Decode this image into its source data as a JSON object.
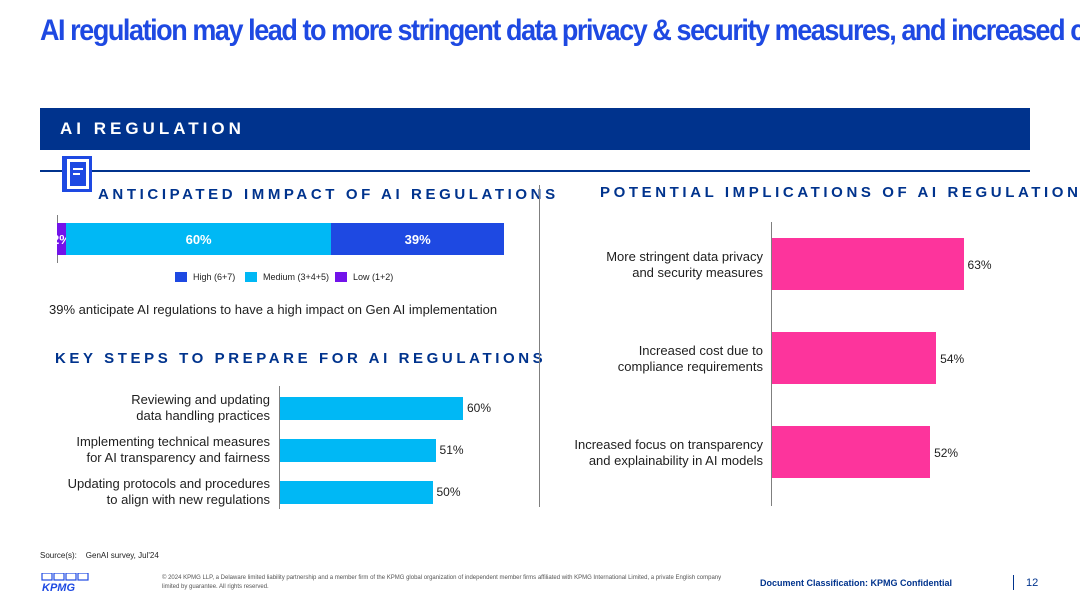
{
  "title": "AI regulation may lead to more stringent data privacy & security measures, and increased cost",
  "banner": "AI REGULATION",
  "colors": {
    "accent": "#1e49e2",
    "navy": "#00338d",
    "high": "#1e49e2",
    "medium": "#00b8f5",
    "low": "#7213ea",
    "pink": "#fd349c"
  },
  "chart_data": [
    {
      "type": "bar",
      "orientation": "horizontal-stacked",
      "title": "ANTICIPATED IMMPACT OF AI REGULATIONS",
      "series": [
        {
          "name": "Low (1+2)",
          "values": [
            2
          ],
          "label": "2%"
        },
        {
          "name": "Medium (3+4+5)",
          "values": [
            60
          ],
          "label": "60%"
        },
        {
          "name": "High (6+7)",
          "values": [
            39
          ],
          "label": "39%"
        }
      ],
      "legend": [
        "High (6+7)",
        "Medium (3+4+5)",
        "Low (1+2)"
      ],
      "xlim": [
        0,
        100
      ]
    },
    {
      "type": "bar",
      "orientation": "horizontal",
      "title": "KEY STEPS TO PREPARE FOR AI REGULATIONS",
      "categories": [
        [
          "Reviewing and updating",
          "data handling practices"
        ],
        [
          "Implementing technical measures",
          "for AI transparency and fairness"
        ],
        [
          "Updating protocols and procedures",
          "to align with new regulations"
        ]
      ],
      "values": [
        60,
        51,
        50
      ],
      "labels": [
        "60%",
        "51%",
        "50%"
      ],
      "xlim": [
        0,
        100
      ]
    },
    {
      "type": "bar",
      "orientation": "horizontal",
      "title": "POTENTIAL IMPLICATIONS OF AI REGULATIONS",
      "categories": [
        [
          "More stringent data privacy",
          "and security measures"
        ],
        [
          "Increased cost due to",
          "compliance requirements"
        ],
        [
          "Increased focus on transparency",
          "and explainability in AI models"
        ]
      ],
      "values": [
        63,
        54,
        52
      ],
      "labels": [
        "63%",
        "54%",
        "52%"
      ],
      "xlim": [
        0,
        100
      ]
    }
  ],
  "stat_text": "39% anticipate AI regulations to have a high impact on Gen AI implementation",
  "footer": {
    "source_label": "Source(s):",
    "source_value": "GenAI survey, Jul'24",
    "logo_text": "KPMG",
    "copyright": "© 2024 KPMG LLP, a Delaware limited liability partnership and a member firm of the KPMG global organization of independent member firms affiliated with KPMG International Limited, a private English company limited by guarantee. All rights reserved.",
    "classification": "Document Classification: KPMG Confidential",
    "page_number": "12"
  }
}
